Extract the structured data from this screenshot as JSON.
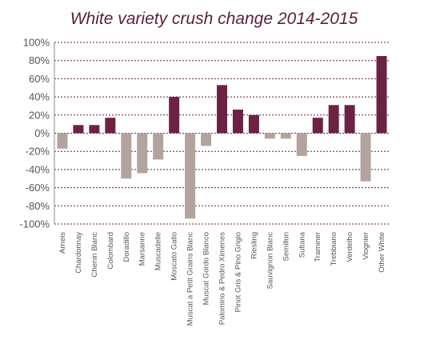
{
  "chart_data": {
    "type": "bar",
    "title": "White variety crush change 2014-2015",
    "xlabel": "",
    "ylabel": "",
    "ylim": [
      -100,
      100
    ],
    "yticks": [
      "100%",
      "80%",
      "60%",
      "40%",
      "20%",
      "0%",
      "-20%",
      "-40%",
      "-60%",
      "-80%",
      "-100%"
    ],
    "ytick_values": [
      100,
      80,
      60,
      40,
      20,
      0,
      -20,
      -40,
      -60,
      -80,
      -100
    ],
    "grid": true,
    "legend": "none",
    "colors": {
      "positive": "#6b2344",
      "negative": "#b3a39e",
      "grid": "#6b2344",
      "text": "#555555",
      "title": "#5a1f3c"
    },
    "categories": [
      "Arneis",
      "Chardonnay",
      "Chenin Blanc",
      "Colombard",
      "Doradillo",
      "Marsanne",
      "Muscadelle",
      "Moscato Gallo",
      "Muscat a Petit Grains Blanc",
      "Muscat Gordo Blanco",
      "Palomino & Pedro Ximenes",
      "Pinot Gris & Pino Grigio",
      "Riesling",
      "Sauvignon Blanc",
      "Semillon",
      "Sultana",
      "Traminer",
      "Trebbiano",
      "Verdelho",
      "Viognier",
      "Other White"
    ],
    "values": [
      -17,
      9,
      9,
      17,
      -50,
      -44,
      -29,
      40,
      -94,
      -14,
      53,
      26,
      20,
      -6,
      -6,
      -25,
      17,
      31,
      31,
      -53,
      85
    ]
  }
}
